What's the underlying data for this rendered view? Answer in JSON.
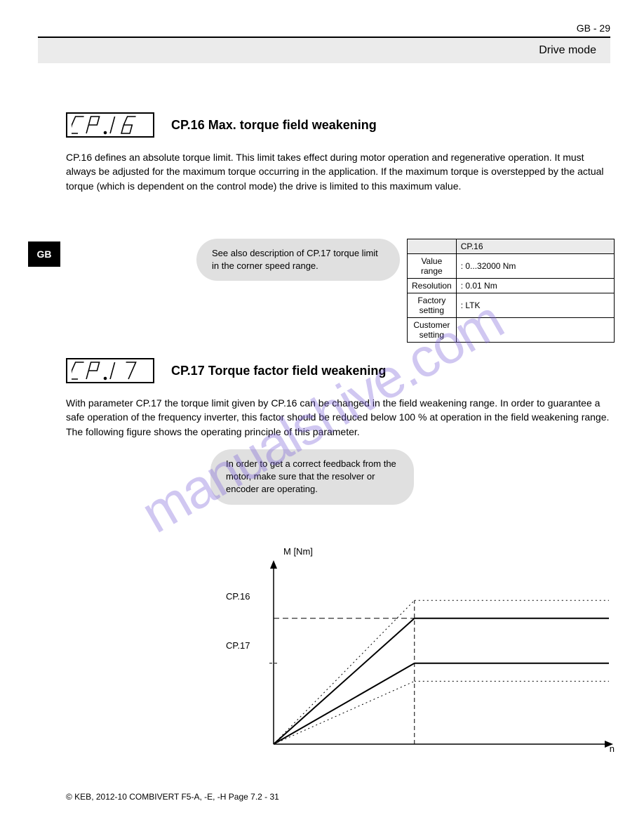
{
  "page_number_top": "GB - 29",
  "header_bar": "Drive mode",
  "footer": "© KEB, 2012-10   COMBIVERT F5-A, -E, -H  Page 7.2 - 31",
  "watermark": "manualshive.com",
  "badge": "GB",
  "section1": {
    "lcd_text": "CP.16",
    "title": "CP.16    Max. torque field weakening",
    "para1": "CP.16 defines an absolute torque limit. This limit takes effect during motor operation and regenerative operation. It must always be adjusted for the maximum torque occurring in the application. If the maximum torque is overstepped by the actual torque (which is dependent on the control mode) the drive is limited to this maximum value.",
    "note": "See also description of CP.17 torque limit in the corner speed range.",
    "table": {
      "headers": [
        "",
        "CP.16"
      ],
      "rows": [
        [
          "Value range",
          ": 0...32000 Nm"
        ],
        [
          "Resolution",
          ": 0.01 Nm"
        ],
        [
          "Factory setting",
          ": LTK"
        ],
        [
          "Customer setting",
          ""
        ]
      ]
    }
  },
  "section2": {
    "lcd_text": "CP.17",
    "title": "CP.17    Torque factor field weakening",
    "para1": "With parameter CP.17 the torque limit given by CP.16 can be changed in the field weakening range. In order to guarantee a safe operation of the frequency inverter, this factor should be reduced below 100 % at operation in the field weakening range. The following figure shows the operating principle of this parameter.",
    "note": "In order to get a correct feedback from the motor, make sure that the resolver or encoder are operating.",
    "label_m": "M [Nm]",
    "label_cp16": "CP.16",
    "label_cp17": "CP.17",
    "label_n": "n"
  },
  "chart": {
    "type": "line",
    "x_axis": {
      "arrow": true,
      "label": "n"
    },
    "y_axis": {
      "arrow": true,
      "label": "M [Nm]"
    },
    "knee_x": 0.42,
    "lines": {
      "upper_dotted": {
        "style": "dotted",
        "level": 0.8,
        "color": "#000000"
      },
      "cp16_solid": {
        "style": "solid",
        "level": 0.7,
        "color": "#000000",
        "width": 2
      },
      "cp16_dash": {
        "style": "dashed",
        "level": 0.7,
        "color": "#000000"
      },
      "cp17_solid": {
        "style": "solid",
        "level": 0.45,
        "color": "#000000",
        "width": 2
      },
      "lower_dotted": {
        "style": "dotted",
        "level": 0.35,
        "color": "#000000"
      }
    },
    "background_color": "#ffffff"
  }
}
